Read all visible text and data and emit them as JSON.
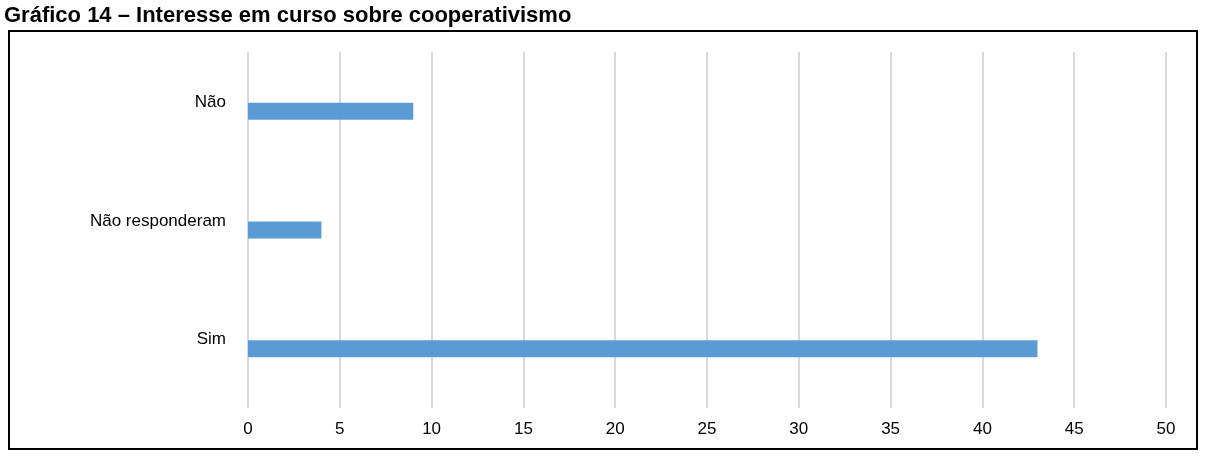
{
  "chart_data": {
    "type": "bar",
    "orientation": "horizontal",
    "title": "Gráfico 14 – Interesse em curso sobre cooperativismo",
    "categories": [
      "Não",
      "Não responderam",
      "Sim"
    ],
    "values": [
      9,
      4,
      43
    ],
    "color": "#5b9bd5",
    "xlim": [
      0,
      50
    ],
    "xticks": [
      0,
      5,
      10,
      15,
      20,
      25,
      30,
      35,
      40,
      45,
      50
    ],
    "grid": "x"
  }
}
